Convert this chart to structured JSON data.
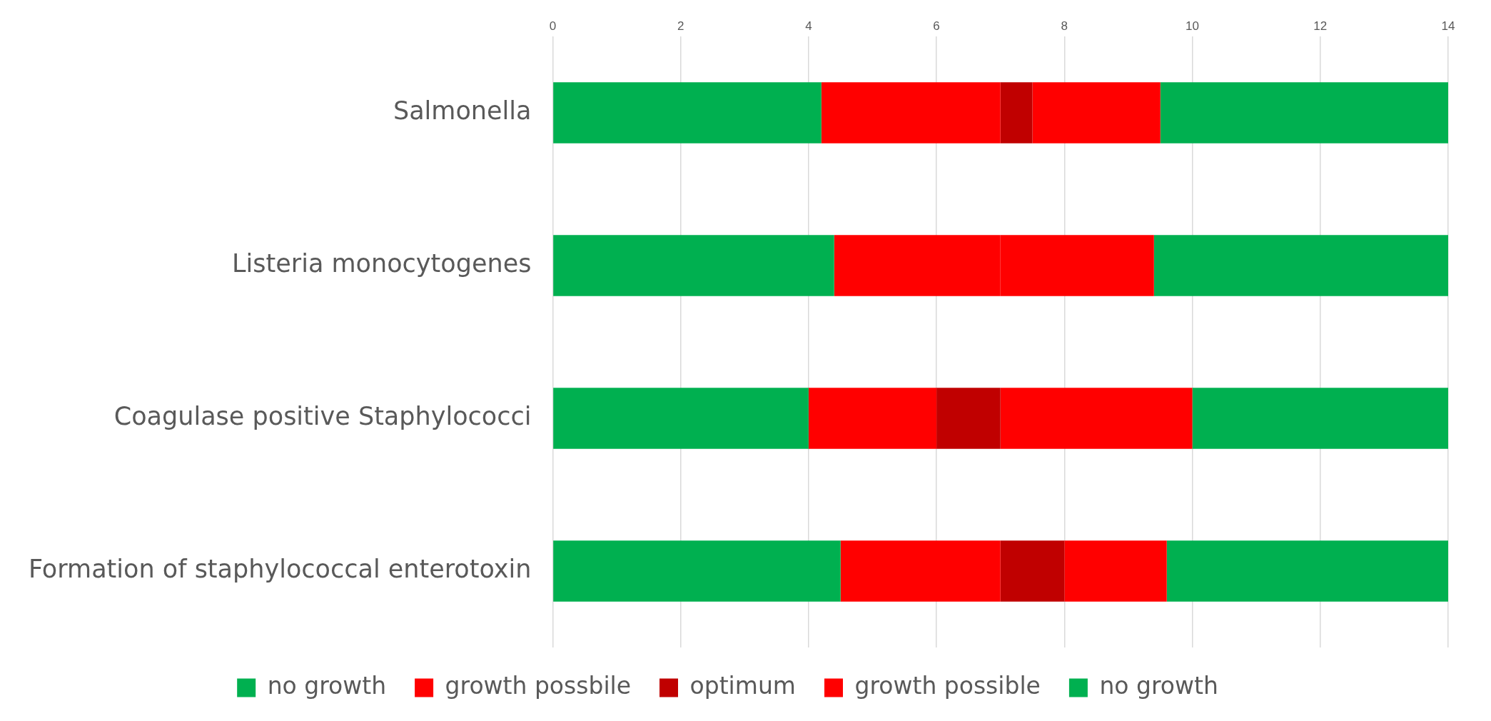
{
  "chart_data": {
    "type": "bar",
    "orientation": "horizontal",
    "stacked": true,
    "categories": [
      "Salmonella",
      "Listeria monocytogenes",
      "Coagulase positive Staphylococci",
      "Formation of staphylococcal enterotoxin"
    ],
    "series": [
      {
        "name": "no growth",
        "color": "#00b050",
        "values": [
          4.2,
          4.4,
          4,
          4.5
        ]
      },
      {
        "name": "growth possbile",
        "color": "#ff0000",
        "values": [
          2.8,
          2.6,
          2,
          2.5
        ]
      },
      {
        "name": "optimum",
        "color": "#c00000",
        "values": [
          0.5,
          0,
          1,
          1
        ]
      },
      {
        "name": "growth possible",
        "color": "#ff0000",
        "values": [
          2,
          2.4,
          3,
          1.6
        ]
      },
      {
        "name": "no growth",
        "color": "#00b050",
        "values": [
          4.5,
          4.6,
          4,
          4.4
        ]
      }
    ],
    "xlim": [
      0,
      14
    ],
    "xticks": [
      0,
      2,
      4,
      6,
      8,
      10,
      12,
      14
    ],
    "grid": "x",
    "legend": "bottom"
  }
}
